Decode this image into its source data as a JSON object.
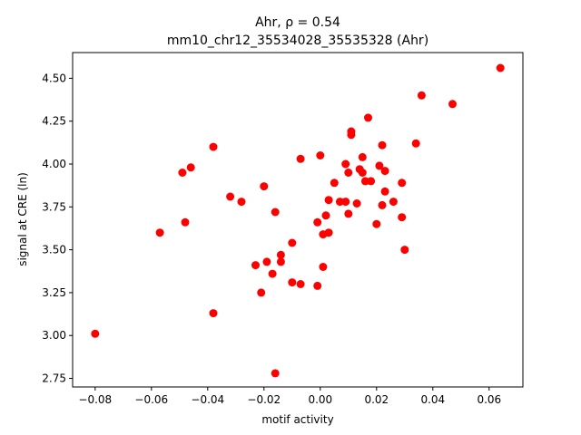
{
  "chart_data": {
    "type": "scatter",
    "title": "Ahr, ρ = 0.54",
    "subtitle": "mm10_chr12_35534028_35535328 (Ahr)",
    "xlabel": "motif activity",
    "ylabel": "signal at CRE (ln)",
    "xlim": [
      -0.088,
      0.072
    ],
    "ylim": [
      2.7,
      4.65
    ],
    "xticks": [
      -0.08,
      -0.06,
      -0.04,
      -0.02,
      0.0,
      0.02,
      0.04,
      0.06
    ],
    "xtick_labels": [
      "−0.08",
      "−0.06",
      "−0.04",
      "−0.02",
      "0.00",
      "0.02",
      "0.04",
      "0.06"
    ],
    "yticks": [
      2.75,
      3.0,
      3.25,
      3.5,
      3.75,
      4.0,
      4.25,
      4.5
    ],
    "ytick_labels": [
      "2.75",
      "3.00",
      "3.25",
      "3.50",
      "3.75",
      "4.00",
      "4.25",
      "4.50"
    ],
    "grid": false,
    "marker_color": "#ff0000",
    "points": [
      [
        -0.08,
        3.01
      ],
      [
        -0.057,
        3.6
      ],
      [
        -0.049,
        3.95
      ],
      [
        -0.048,
        3.66
      ],
      [
        -0.046,
        3.98
      ],
      [
        -0.038,
        4.1
      ],
      [
        -0.038,
        3.13
      ],
      [
        -0.032,
        3.81
      ],
      [
        -0.028,
        3.78
      ],
      [
        -0.023,
        3.41
      ],
      [
        -0.021,
        3.25
      ],
      [
        -0.02,
        3.87
      ],
      [
        -0.019,
        3.43
      ],
      [
        -0.017,
        3.36
      ],
      [
        -0.016,
        3.72
      ],
      [
        -0.016,
        2.78
      ],
      [
        -0.014,
        3.47
      ],
      [
        -0.014,
        3.43
      ],
      [
        -0.01,
        3.54
      ],
      [
        -0.01,
        3.31
      ],
      [
        -0.007,
        3.3
      ],
      [
        -0.007,
        4.03
      ],
      [
        -0.001,
        3.29
      ],
      [
        -0.001,
        3.66
      ],
      [
        0.0,
        4.05
      ],
      [
        0.001,
        3.4
      ],
      [
        0.001,
        3.59
      ],
      [
        0.002,
        3.7
      ],
      [
        0.003,
        3.6
      ],
      [
        0.003,
        3.79
      ],
      [
        0.005,
        3.89
      ],
      [
        0.007,
        3.78
      ],
      [
        0.009,
        3.78
      ],
      [
        0.009,
        4.0
      ],
      [
        0.01,
        3.95
      ],
      [
        0.01,
        3.71
      ],
      [
        0.011,
        4.19
      ],
      [
        0.011,
        4.17
      ],
      [
        0.013,
        3.77
      ],
      [
        0.014,
        3.97
      ],
      [
        0.015,
        3.95
      ],
      [
        0.015,
        4.04
      ],
      [
        0.016,
        3.9
      ],
      [
        0.017,
        4.27
      ],
      [
        0.018,
        3.9
      ],
      [
        0.02,
        3.65
      ],
      [
        0.021,
        3.99
      ],
      [
        0.022,
        4.11
      ],
      [
        0.022,
        3.76
      ],
      [
        0.023,
        3.96
      ],
      [
        0.023,
        3.84
      ],
      [
        0.026,
        3.78
      ],
      [
        0.029,
        3.89
      ],
      [
        0.029,
        3.69
      ],
      [
        0.03,
        3.5
      ],
      [
        0.034,
        4.12
      ],
      [
        0.036,
        4.4
      ],
      [
        0.047,
        4.35
      ],
      [
        0.064,
        4.56
      ]
    ]
  }
}
